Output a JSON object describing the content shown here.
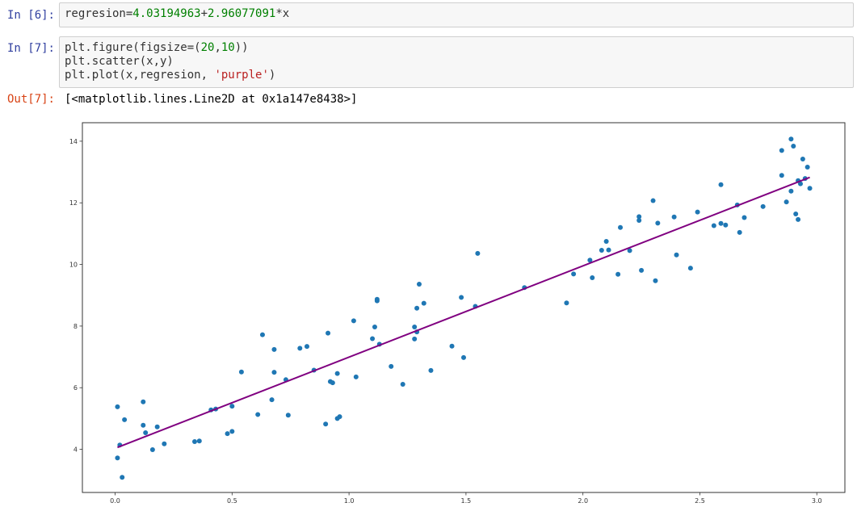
{
  "cells": [
    {
      "prompt": "In [6]:",
      "code_line": {
        "prefix": "regresion=",
        "a": "4.03194963",
        "plus": "+",
        "b": "2.96077091",
        "suffix": "*x"
      }
    },
    {
      "prompt": "In [7]:",
      "line1": {
        "prefix": "plt.figure(figsize=(",
        "w": "20",
        "comma": ",",
        "h": "10",
        "suffix": "))"
      },
      "line2": "plt.scatter(x,y)",
      "line3": {
        "prefix": "plt.plot(x,regresion, ",
        "str": "'purple'",
        "suffix": ")"
      },
      "out_prompt": "Out[7]:",
      "output_text": "[<matplotlib.lines.Line2D at 0x1a147e8438>]"
    }
  ],
  "chart_data": {
    "type": "scatter",
    "xlim": [
      -0.14,
      3.12
    ],
    "ylim": [
      2.6,
      14.6
    ],
    "x_ticks": [
      0.0,
      0.5,
      1.0,
      1.5,
      2.0,
      2.5,
      3.0
    ],
    "x_tick_labels": [
      "0.0",
      "0.5",
      "1.0",
      "1.5",
      "2.0",
      "2.5",
      "3.0"
    ],
    "y_ticks": [
      4,
      6,
      8,
      10,
      12,
      14
    ],
    "y_tick_labels": [
      "4",
      "6",
      "8",
      "10",
      "12",
      "14"
    ],
    "grid": false,
    "scatter_color": "#1f77b4",
    "line_color": "#800080",
    "line": {
      "intercept": 4.03194963,
      "slope": 2.96077091,
      "x_start": 0.01,
      "x_end": 2.97
    },
    "points": [
      {
        "x": 0.01,
        "y": 5.38
      },
      {
        "x": 0.01,
        "y": 3.72
      },
      {
        "x": 0.02,
        "y": 4.14
      },
      {
        "x": 0.03,
        "y": 3.09
      },
      {
        "x": 0.04,
        "y": 4.96
      },
      {
        "x": 0.12,
        "y": 4.78
      },
      {
        "x": 0.12,
        "y": 5.54
      },
      {
        "x": 0.13,
        "y": 4.54
      },
      {
        "x": 0.16,
        "y": 3.99
      },
      {
        "x": 0.18,
        "y": 4.73
      },
      {
        "x": 0.21,
        "y": 4.18
      },
      {
        "x": 0.34,
        "y": 4.25
      },
      {
        "x": 0.36,
        "y": 4.27
      },
      {
        "x": 0.41,
        "y": 5.28
      },
      {
        "x": 0.43,
        "y": 5.31
      },
      {
        "x": 0.48,
        "y": 4.51
      },
      {
        "x": 0.5,
        "y": 4.58
      },
      {
        "x": 0.5,
        "y": 5.4
      },
      {
        "x": 0.54,
        "y": 6.51
      },
      {
        "x": 0.61,
        "y": 5.13
      },
      {
        "x": 0.63,
        "y": 7.72
      },
      {
        "x": 0.67,
        "y": 5.61
      },
      {
        "x": 0.68,
        "y": 7.24
      },
      {
        "x": 0.68,
        "y": 6.5
      },
      {
        "x": 0.73,
        "y": 6.26
      },
      {
        "x": 0.74,
        "y": 5.11
      },
      {
        "x": 0.79,
        "y": 7.28
      },
      {
        "x": 0.82,
        "y": 7.34
      },
      {
        "x": 0.85,
        "y": 6.57
      },
      {
        "x": 0.9,
        "y": 4.82
      },
      {
        "x": 0.91,
        "y": 7.77
      },
      {
        "x": 0.92,
        "y": 6.2
      },
      {
        "x": 0.93,
        "y": 6.16
      },
      {
        "x": 0.95,
        "y": 5.0
      },
      {
        "x": 0.95,
        "y": 6.46
      },
      {
        "x": 0.96,
        "y": 5.06
      },
      {
        "x": 1.02,
        "y": 8.17
      },
      {
        "x": 1.03,
        "y": 6.35
      },
      {
        "x": 1.1,
        "y": 7.59
      },
      {
        "x": 1.11,
        "y": 7.97
      },
      {
        "x": 1.12,
        "y": 8.87
      },
      {
        "x": 1.12,
        "y": 8.82
      },
      {
        "x": 1.13,
        "y": 7.41
      },
      {
        "x": 1.18,
        "y": 6.69
      },
      {
        "x": 1.23,
        "y": 6.11
      },
      {
        "x": 1.28,
        "y": 7.97
      },
      {
        "x": 1.29,
        "y": 8.58
      },
      {
        "x": 1.28,
        "y": 7.58
      },
      {
        "x": 1.29,
        "y": 7.81
      },
      {
        "x": 1.3,
        "y": 9.36
      },
      {
        "x": 1.32,
        "y": 8.74
      },
      {
        "x": 1.35,
        "y": 6.56
      },
      {
        "x": 1.44,
        "y": 7.35
      },
      {
        "x": 1.48,
        "y": 8.93
      },
      {
        "x": 1.49,
        "y": 6.98
      },
      {
        "x": 1.54,
        "y": 8.64
      },
      {
        "x": 1.55,
        "y": 10.36
      },
      {
        "x": 1.75,
        "y": 9.25
      },
      {
        "x": 1.93,
        "y": 8.75
      },
      {
        "x": 1.96,
        "y": 9.69
      },
      {
        "x": 2.03,
        "y": 10.14
      },
      {
        "x": 2.04,
        "y": 9.57
      },
      {
        "x": 2.08,
        "y": 10.46
      },
      {
        "x": 2.1,
        "y": 10.75
      },
      {
        "x": 2.11,
        "y": 10.47
      },
      {
        "x": 2.15,
        "y": 9.68
      },
      {
        "x": 2.16,
        "y": 11.2
      },
      {
        "x": 2.2,
        "y": 10.45
      },
      {
        "x": 2.24,
        "y": 11.55
      },
      {
        "x": 2.24,
        "y": 11.43
      },
      {
        "x": 2.25,
        "y": 9.81
      },
      {
        "x": 2.3,
        "y": 12.07
      },
      {
        "x": 2.31,
        "y": 9.47
      },
      {
        "x": 2.32,
        "y": 11.34
      },
      {
        "x": 2.39,
        "y": 11.54
      },
      {
        "x": 2.4,
        "y": 10.31
      },
      {
        "x": 2.46,
        "y": 9.88
      },
      {
        "x": 2.49,
        "y": 11.7
      },
      {
        "x": 2.56,
        "y": 11.26
      },
      {
        "x": 2.59,
        "y": 11.33
      },
      {
        "x": 2.59,
        "y": 12.59
      },
      {
        "x": 2.61,
        "y": 11.28
      },
      {
        "x": 2.66,
        "y": 11.93
      },
      {
        "x": 2.67,
        "y": 11.04
      },
      {
        "x": 2.69,
        "y": 11.52
      },
      {
        "x": 2.77,
        "y": 11.88
      },
      {
        "x": 2.85,
        "y": 13.7
      },
      {
        "x": 2.85,
        "y": 12.89
      },
      {
        "x": 2.87,
        "y": 12.03
      },
      {
        "x": 2.89,
        "y": 14.07
      },
      {
        "x": 2.9,
        "y": 13.84
      },
      {
        "x": 2.89,
        "y": 12.38
      },
      {
        "x": 2.91,
        "y": 11.64
      },
      {
        "x": 2.92,
        "y": 11.46
      },
      {
        "x": 2.92,
        "y": 12.72
      },
      {
        "x": 2.93,
        "y": 12.62
      },
      {
        "x": 2.94,
        "y": 13.42
      },
      {
        "x": 2.95,
        "y": 12.79
      },
      {
        "x": 2.96,
        "y": 13.16
      },
      {
        "x": 2.97,
        "y": 12.47
      }
    ]
  }
}
